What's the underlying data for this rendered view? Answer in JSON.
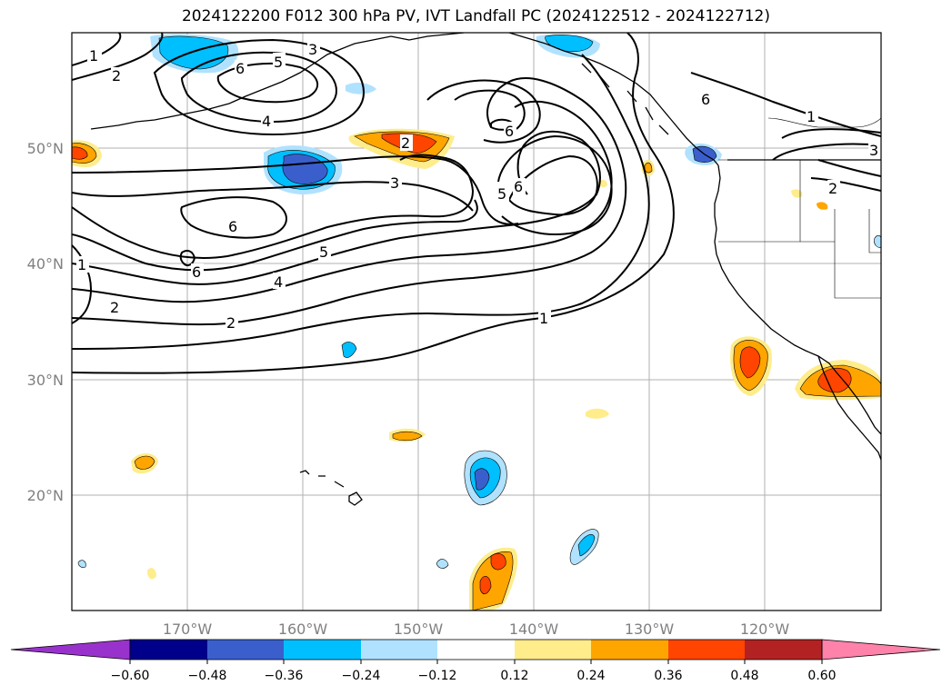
{
  "title": "2024122200 F012 300 hPa PV, IVT Landfall PC (2024122512 - 2024122712)",
  "map": {
    "lon_range": [
      -180,
      -110
    ],
    "lat_range": [
      10,
      60
    ],
    "lon_labels": [
      "170°W",
      "160°W",
      "150°W",
      "140°W",
      "130°W",
      "120°W"
    ],
    "lat_labels": [
      "50°N",
      "40°N",
      "30°N",
      "20°N"
    ],
    "gridlines": true,
    "contour_labels": [
      "1",
      "2",
      "5",
      "3",
      "4",
      "6",
      "2",
      "6",
      "3",
      "5",
      "6",
      "5",
      "6",
      "1",
      "1",
      "3",
      "2",
      "6",
      "4",
      "6",
      "1",
      "2",
      "5",
      "2",
      "1",
      "1"
    ]
  },
  "colorbar": {
    "colors": [
      "#9932cc",
      "#00008b",
      "#3a5fcd",
      "#00bfff",
      "#b0e2ff",
      "#ffffff",
      "#ffec8b",
      "#ffa500",
      "#ff4500",
      "#b22222",
      "#ff82ab"
    ],
    "ticks": [
      "−0.60",
      "−0.48",
      "−0.36",
      "−0.24",
      "−0.12",
      "0.12",
      "0.24",
      "0.36",
      "0.48",
      "0.60"
    ]
  }
}
